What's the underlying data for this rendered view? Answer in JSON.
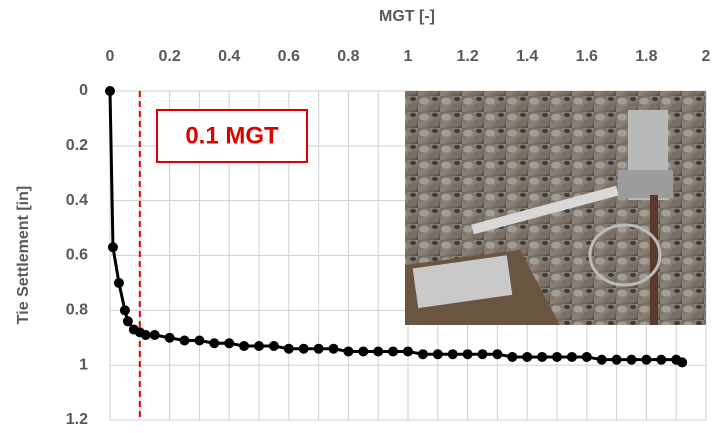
{
  "chart_data": {
    "type": "scatter",
    "x_label": "MGT [-]",
    "y_label": "Tie Settlement [in]",
    "xlim": [
      0,
      2
    ],
    "xticks": [
      0,
      0.2,
      0.4,
      0.6,
      0.8,
      1,
      1.2,
      1.4,
      1.6,
      1.8,
      2
    ],
    "ylim": [
      0,
      1.2
    ],
    "yticks": [
      0,
      0.2,
      0.4,
      0.6,
      0.8,
      1,
      1.2
    ],
    "y_inverted": true,
    "x_axis_position": "top",
    "xgrid": [
      0,
      0.1,
      0.2,
      0.3,
      0.4,
      0.5,
      0.6,
      0.7,
      0.8,
      0.9,
      1,
      1.1,
      1.2,
      1.3,
      1.4,
      1.5,
      1.6,
      1.7,
      1.8,
      1.9,
      2
    ],
    "series": [
      {
        "color": "#000000",
        "x": [
          0,
          0.01,
          0.03,
          0.05,
          0.06,
          0.08,
          0.1,
          0.12,
          0.15,
          0.2,
          0.25,
          0.3,
          0.35,
          0.4,
          0.45,
          0.5,
          0.55,
          0.6,
          0.65,
          0.7,
          0.75,
          0.8,
          0.85,
          0.9,
          0.95,
          1.0,
          1.05,
          1.1,
          1.15,
          1.2,
          1.25,
          1.3,
          1.35,
          1.4,
          1.45,
          1.5,
          1.55,
          1.6,
          1.65,
          1.7,
          1.75,
          1.8,
          1.85,
          1.9,
          1.92
        ],
        "values": [
          0,
          0.57,
          0.7,
          0.8,
          0.84,
          0.87,
          0.88,
          0.89,
          0.89,
          0.9,
          0.91,
          0.91,
          0.92,
          0.92,
          0.93,
          0.93,
          0.93,
          0.94,
          0.94,
          0.94,
          0.94,
          0.95,
          0.95,
          0.95,
          0.95,
          0.95,
          0.96,
          0.96,
          0.96,
          0.96,
          0.96,
          0.96,
          0.97,
          0.97,
          0.97,
          0.97,
          0.97,
          0.97,
          0.98,
          0.98,
          0.98,
          0.98,
          0.98,
          0.98,
          0.99
        ]
      }
    ],
    "annotation": {
      "text": "0.1 MGT",
      "x": 0.1,
      "color": "#e00000"
    }
  }
}
